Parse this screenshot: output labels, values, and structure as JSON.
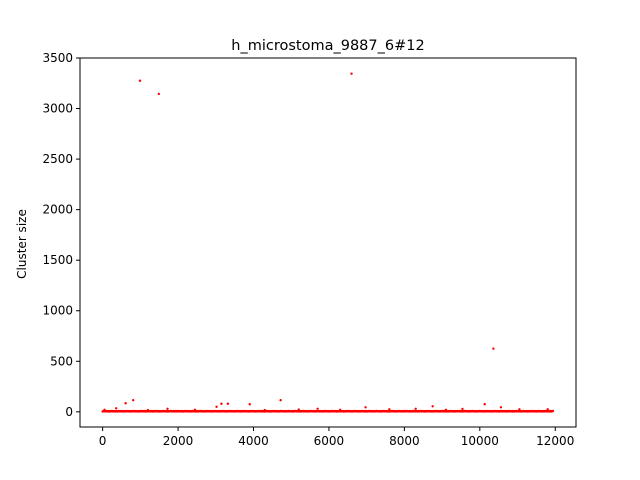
{
  "chart_data": {
    "type": "scatter",
    "title": "h_microstoma_9887_6#12",
    "xlabel": "",
    "ylabel": "Cluster size",
    "xlim": [
      -600,
      12550
    ],
    "ylim": [
      -150,
      3500
    ],
    "xticks": [
      0,
      2000,
      4000,
      6000,
      8000,
      10000,
      12000
    ],
    "yticks": [
      0,
      500,
      1000,
      1500,
      2000,
      2500,
      3000,
      3500
    ],
    "xtick_labels": [
      "0",
      "2000",
      "4000",
      "6000",
      "8000",
      "10000",
      "12000"
    ],
    "ytick_labels": [
      "0",
      "500",
      "1000",
      "1500",
      "2000",
      "2500",
      "3000",
      "3500"
    ],
    "grid": false,
    "point_color": "#ff0000",
    "series": [
      {
        "baseline_range": [
          0,
          11950
        ],
        "baseline_value": 3,
        "outliers": [
          {
            "x": 990,
            "y": 3275
          },
          {
            "x": 1490,
            "y": 3145
          },
          {
            "x": 6600,
            "y": 3345
          },
          {
            "x": 10360,
            "y": 625
          },
          {
            "x": 810,
            "y": 115
          },
          {
            "x": 4720,
            "y": 115
          },
          {
            "x": 610,
            "y": 85
          },
          {
            "x": 3150,
            "y": 80
          },
          {
            "x": 3320,
            "y": 80
          },
          {
            "x": 3900,
            "y": 75
          },
          {
            "x": 10130,
            "y": 75
          },
          {
            "x": 8750,
            "y": 55
          },
          {
            "x": 3020,
            "y": 50
          },
          {
            "x": 6970,
            "y": 45
          },
          {
            "x": 10560,
            "y": 45
          },
          {
            "x": 360,
            "y": 35
          },
          {
            "x": 1720,
            "y": 30
          },
          {
            "x": 5700,
            "y": 30
          },
          {
            "x": 8300,
            "y": 30
          },
          {
            "x": 9540,
            "y": 28
          },
          {
            "x": 11050,
            "y": 25
          },
          {
            "x": 11800,
            "y": 25
          },
          {
            "x": 7600,
            "y": 25
          },
          {
            "x": 2450,
            "y": 20
          },
          {
            "x": 5200,
            "y": 22
          },
          {
            "x": 6300,
            "y": 20
          },
          {
            "x": 9100,
            "y": 20
          },
          {
            "x": 4300,
            "y": 18
          },
          {
            "x": 1200,
            "y": 18
          },
          {
            "x": 50,
            "y": 20
          }
        ]
      }
    ]
  }
}
